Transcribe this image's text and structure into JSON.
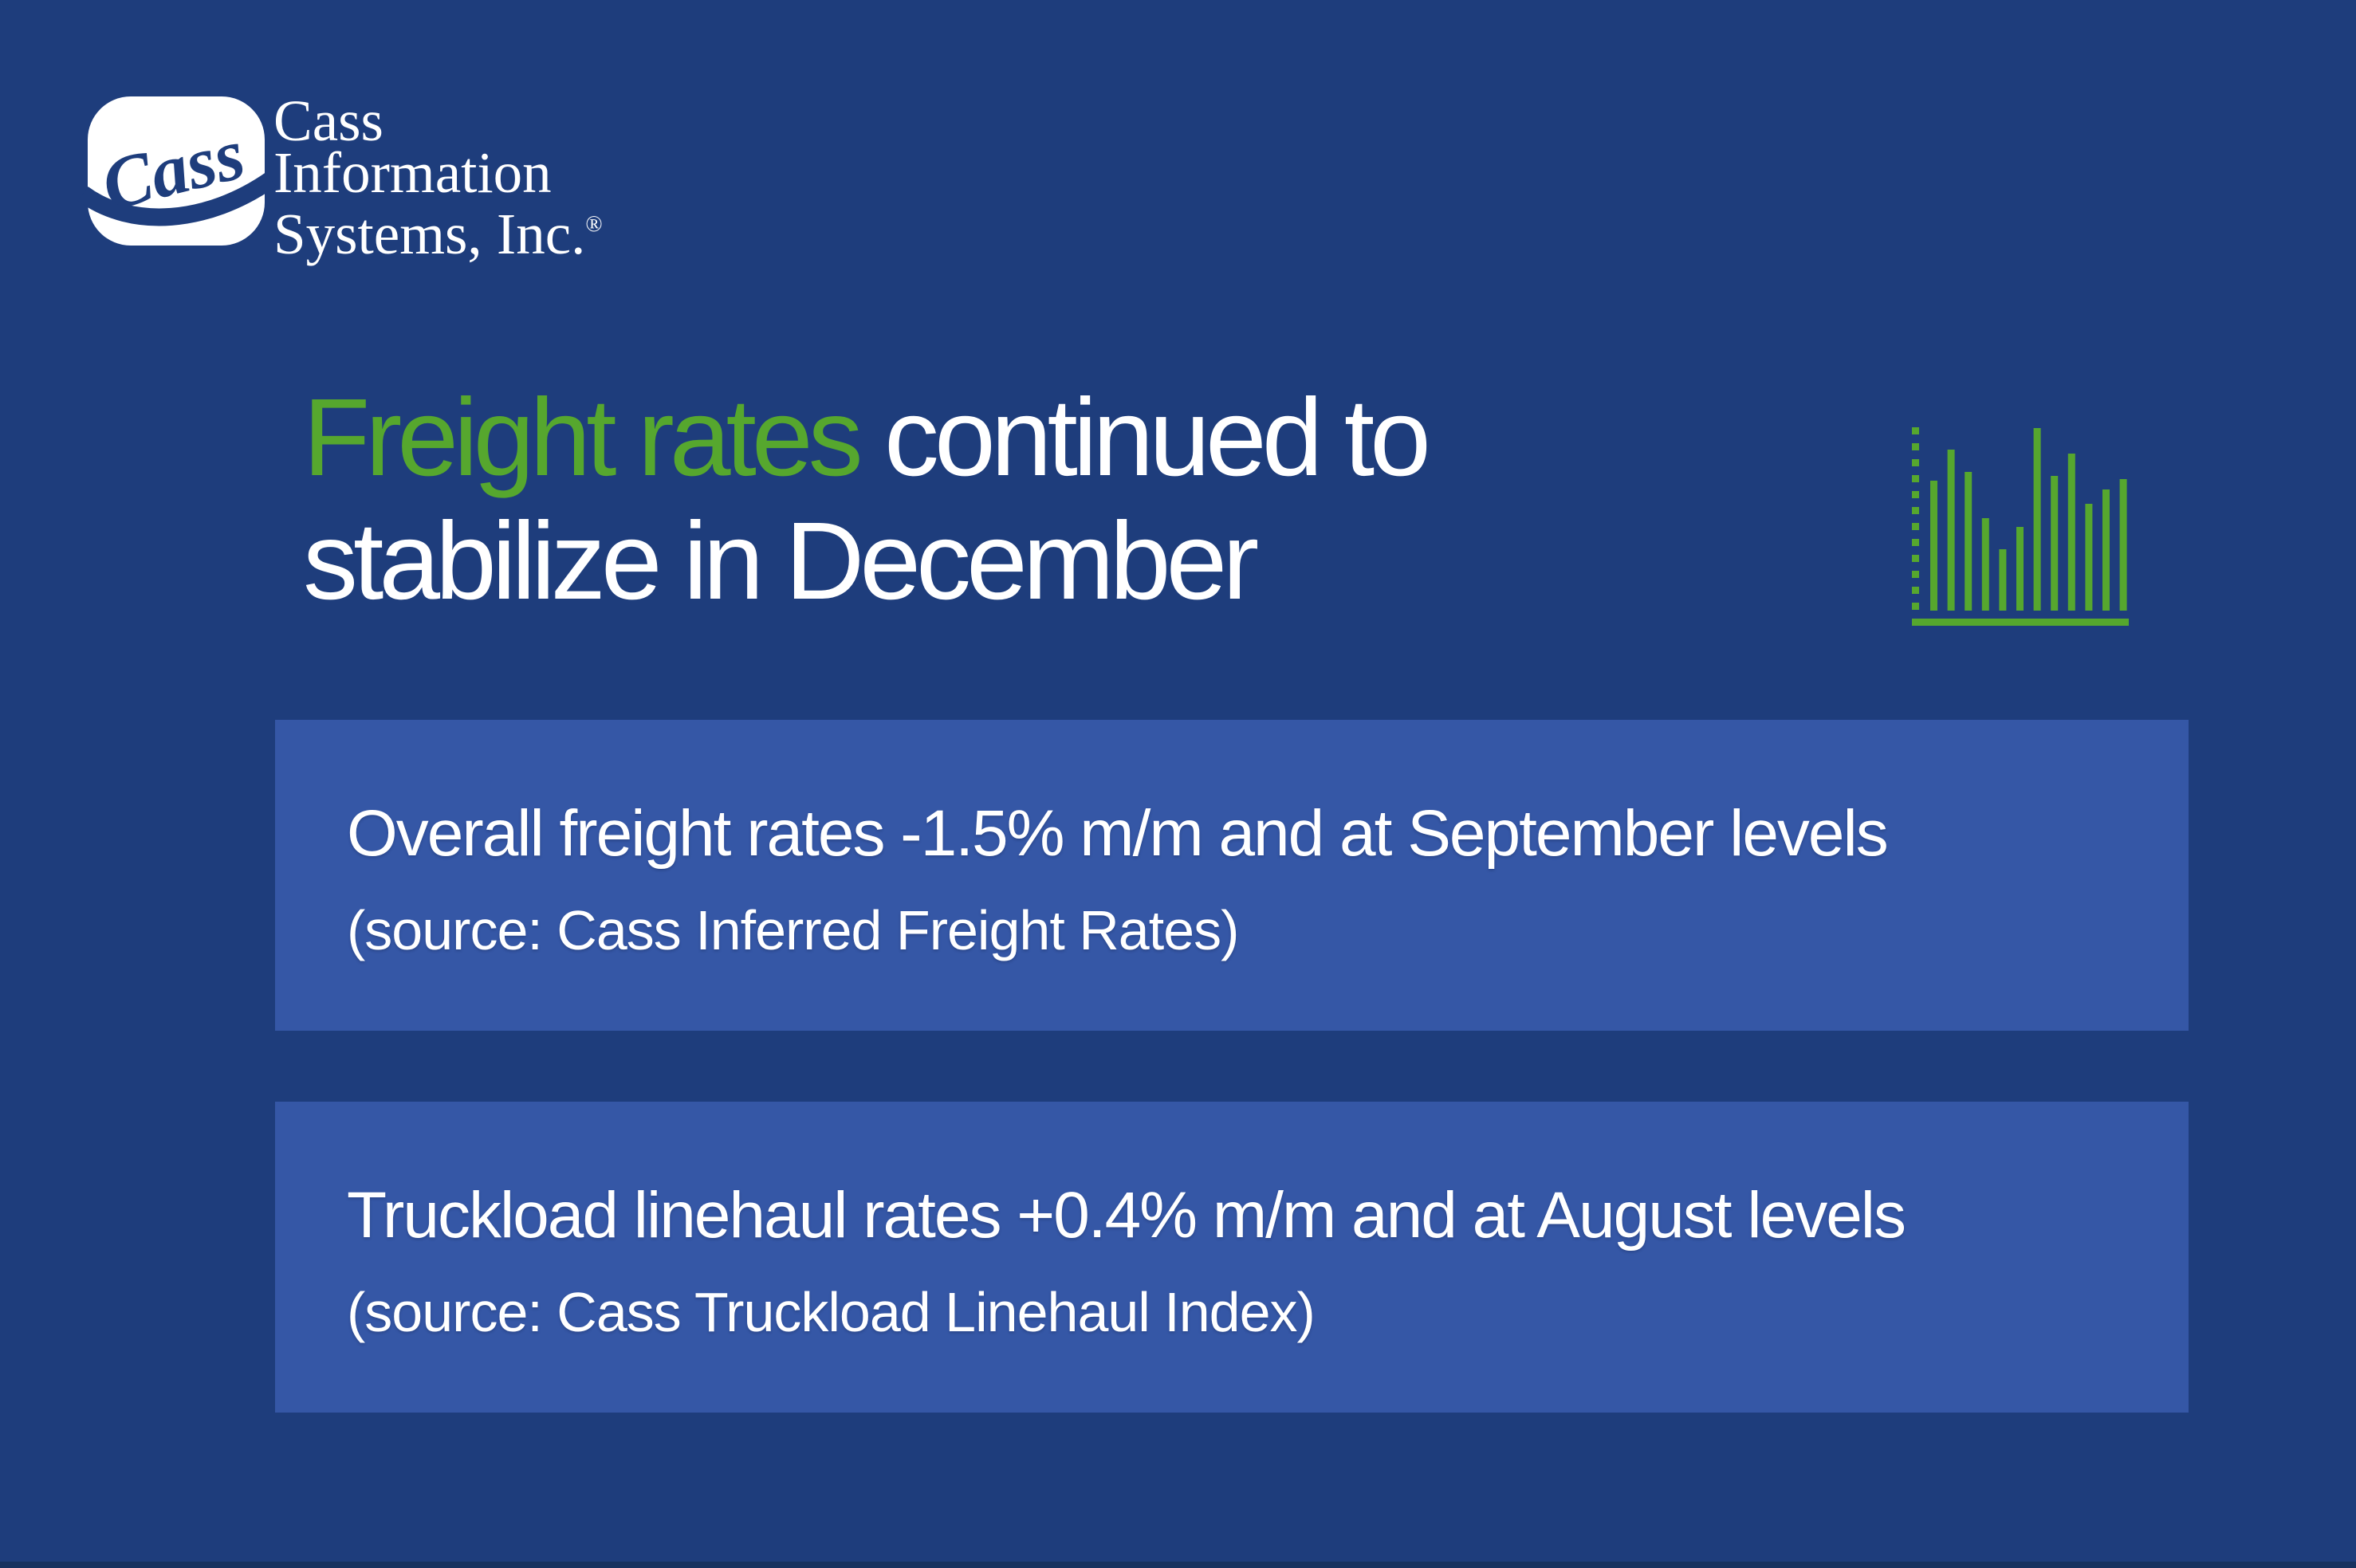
{
  "colors": {
    "background": "#1e3d7c",
    "panel_blue": "#3557a6",
    "accent_green": "#56a72e",
    "text_white": "#ffffff",
    "bottom_border": "#17325f"
  },
  "logo": {
    "script_text": "Cass",
    "company_lines": [
      "Cass",
      "Information",
      "Systems, Inc."
    ],
    "registered_mark": "®"
  },
  "headline": {
    "highlight": "Freight rates",
    "line1_rest": "continued to",
    "line2": "stabilize in December"
  },
  "chart_icon": {
    "color": "#56a72e",
    "dash_count": 12,
    "bar_heights": [
      163,
      202,
      174,
      116,
      77,
      105,
      229,
      169,
      197,
      134,
      152,
      165
    ]
  },
  "panels": [
    {
      "main": "Overall freight rates -1.5% m/m and at September levels",
      "source": "(source: Cass Inferred Freight Rates)"
    },
    {
      "main": "Truckload linehaul rates +0.4% m/m and at August levels",
      "source": "(source: Cass Truckload Linehaul Index)"
    }
  ]
}
